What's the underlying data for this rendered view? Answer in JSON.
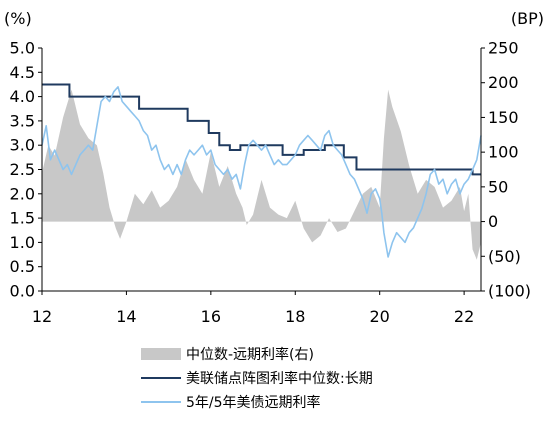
{
  "chart_data": {
    "type": "line",
    "title": "",
    "left_axis": {
      "unit_label": "(%)",
      "ylim": [
        0.0,
        5.0
      ],
      "ticks": [
        0.0,
        0.5,
        1.0,
        1.5,
        2.0,
        2.5,
        3.0,
        3.5,
        4.0,
        4.5,
        5.0
      ],
      "tick_labels": [
        "0.0",
        "0.5",
        "1.0",
        "1.5",
        "2.0",
        "2.5",
        "3.0",
        "3.5",
        "4.0",
        "4.5",
        "5.0"
      ]
    },
    "right_axis": {
      "unit_label": "(BP)",
      "ylim": [
        -100,
        250
      ],
      "ticks": [
        -100,
        -50,
        0,
        50,
        100,
        150,
        200,
        250
      ],
      "tick_labels": [
        "(100)",
        "(50)",
        "0",
        "50",
        "100",
        "150",
        "200",
        "250"
      ]
    },
    "x_axis": {
      "xlim": [
        2012.0,
        2022.4
      ],
      "ticks": [
        2012,
        2014,
        2016,
        2018,
        2020,
        2022
      ],
      "tick_labels": [
        "12",
        "14",
        "16",
        "18",
        "20",
        "22"
      ]
    },
    "grid": false,
    "legend_position": "bottom",
    "colors": {
      "spread_area": "#c8c8c8",
      "dot_plot": "#1f3a5f",
      "forward_rate": "#8ec4ee"
    },
    "series": [
      {
        "name": "中位数-远期利率(右)",
        "kind": "area",
        "axis": "right",
        "x": [
          2012.0,
          2012.15,
          2012.3,
          2012.5,
          2012.7,
          2012.9,
          2013.1,
          2013.3,
          2013.45,
          2013.6,
          2013.75,
          2013.85,
          2014.0,
          2014.2,
          2014.4,
          2014.6,
          2014.8,
          2015.0,
          2015.2,
          2015.4,
          2015.6,
          2015.8,
          2016.0,
          2016.2,
          2016.4,
          2016.6,
          2016.75,
          2016.85,
          2017.0,
          2017.2,
          2017.4,
          2017.6,
          2017.8,
          2018.0,
          2018.2,
          2018.4,
          2018.6,
          2018.8,
          2019.0,
          2019.2,
          2019.4,
          2019.6,
          2019.8,
          2020.0,
          2020.1,
          2020.2,
          2020.3,
          2020.5,
          2020.7,
          2020.9,
          2021.1,
          2021.3,
          2021.5,
          2021.7,
          2021.9,
          2022.0,
          2022.1,
          2022.2,
          2022.3,
          2022.4
        ],
        "values": [
          70,
          110,
          95,
          150,
          190,
          140,
          120,
          110,
          70,
          20,
          -10,
          -25,
          0,
          40,
          25,
          45,
          20,
          30,
          50,
          90,
          60,
          40,
          100,
          50,
          80,
          40,
          20,
          -5,
          10,
          60,
          20,
          10,
          5,
          30,
          -10,
          -30,
          -20,
          5,
          -15,
          -10,
          15,
          40,
          50,
          20,
          120,
          190,
          165,
          130,
          80,
          40,
          60,
          50,
          20,
          30,
          50,
          15,
          40,
          -40,
          -55,
          -30
        ]
      },
      {
        "name": "美联储点阵图利率中位数:长期",
        "kind": "step",
        "axis": "left",
        "x": [
          2012.0,
          2012.65,
          2014.3,
          2014.95,
          2015.45,
          2015.95,
          2016.2,
          2016.45,
          2016.7,
          2017.2,
          2017.7,
          2018.2,
          2018.7,
          2019.15,
          2019.45,
          2022.2,
          2022.4
        ],
        "values": [
          4.25,
          4.0,
          3.75,
          3.75,
          3.5,
          3.25,
          3.0,
          2.9,
          3.0,
          3.0,
          2.8,
          2.9,
          3.0,
          2.75,
          2.5,
          2.4,
          2.4
        ]
      },
      {
        "name": "5年/5年美债远期利率",
        "kind": "line",
        "axis": "left",
        "x": [
          2012.0,
          2012.1,
          2012.2,
          2012.3,
          2012.4,
          2012.5,
          2012.6,
          2012.7,
          2012.8,
          2012.9,
          2013.0,
          2013.1,
          2013.2,
          2013.3,
          2013.4,
          2013.5,
          2013.6,
          2013.7,
          2013.8,
          2013.9,
          2014.0,
          2014.1,
          2014.2,
          2014.3,
          2014.4,
          2014.5,
          2014.6,
          2014.7,
          2014.8,
          2014.9,
          2015.0,
          2015.1,
          2015.2,
          2015.3,
          2015.4,
          2015.5,
          2015.6,
          2015.7,
          2015.8,
          2015.9,
          2016.0,
          2016.1,
          2016.2,
          2016.3,
          2016.4,
          2016.5,
          2016.6,
          2016.7,
          2016.8,
          2016.9,
          2017.0,
          2017.1,
          2017.2,
          2017.3,
          2017.4,
          2017.5,
          2017.6,
          2017.7,
          2017.8,
          2017.9,
          2018.0,
          2018.1,
          2018.2,
          2018.3,
          2018.4,
          2018.5,
          2018.6,
          2018.7,
          2018.8,
          2018.9,
          2019.0,
          2019.1,
          2019.2,
          2019.3,
          2019.4,
          2019.5,
          2019.6,
          2019.7,
          2019.8,
          2019.9,
          2020.0,
          2020.05,
          2020.1,
          2020.2,
          2020.3,
          2020.4,
          2020.5,
          2020.6,
          2020.7,
          2020.8,
          2020.9,
          2021.0,
          2021.1,
          2021.2,
          2021.3,
          2021.4,
          2021.5,
          2021.6,
          2021.7,
          2021.8,
          2021.9,
          2022.0,
          2022.1,
          2022.2,
          2022.3,
          2022.4
        ],
        "values": [
          3.0,
          3.4,
          2.7,
          2.9,
          2.7,
          2.5,
          2.6,
          2.4,
          2.6,
          2.8,
          2.9,
          3.0,
          2.9,
          3.4,
          3.9,
          4.0,
          3.9,
          4.1,
          4.2,
          3.9,
          3.8,
          3.7,
          3.6,
          3.5,
          3.3,
          3.2,
          2.9,
          3.0,
          2.7,
          2.5,
          2.6,
          2.4,
          2.6,
          2.4,
          2.7,
          2.9,
          2.8,
          2.9,
          3.0,
          2.8,
          2.9,
          2.6,
          2.5,
          2.4,
          2.5,
          2.3,
          2.4,
          2.1,
          2.6,
          3.0,
          3.1,
          3.0,
          2.9,
          3.0,
          2.8,
          2.6,
          2.7,
          2.6,
          2.6,
          2.7,
          2.8,
          3.0,
          3.1,
          3.2,
          3.1,
          3.0,
          2.9,
          3.2,
          3.3,
          3.0,
          2.9,
          2.8,
          2.6,
          2.4,
          2.3,
          2.1,
          1.9,
          1.6,
          2.0,
          2.1,
          1.9,
          1.6,
          1.2,
          0.7,
          1.0,
          1.2,
          1.1,
          1.0,
          1.2,
          1.3,
          1.5,
          1.7,
          2.0,
          2.4,
          2.5,
          2.2,
          2.3,
          2.0,
          2.2,
          2.3,
          2.0,
          2.2,
          2.3,
          2.5,
          2.7,
          3.2
        ]
      }
    ]
  }
}
